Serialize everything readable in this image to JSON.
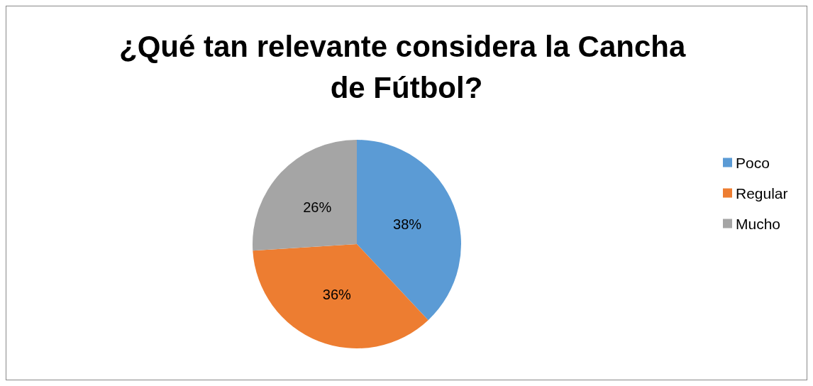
{
  "chart_data": {
    "type": "pie",
    "title": "¿Qué tan relevante considera la Cancha de Fútbol?",
    "categories": [
      "Poco",
      "Regular",
      "Mucho"
    ],
    "values": [
      38,
      36,
      26
    ],
    "value_labels": [
      "38%",
      "36%",
      "26%"
    ],
    "colors": [
      "#5b9bd5",
      "#ed7d31",
      "#a5a5a5"
    ],
    "legend": "right"
  }
}
